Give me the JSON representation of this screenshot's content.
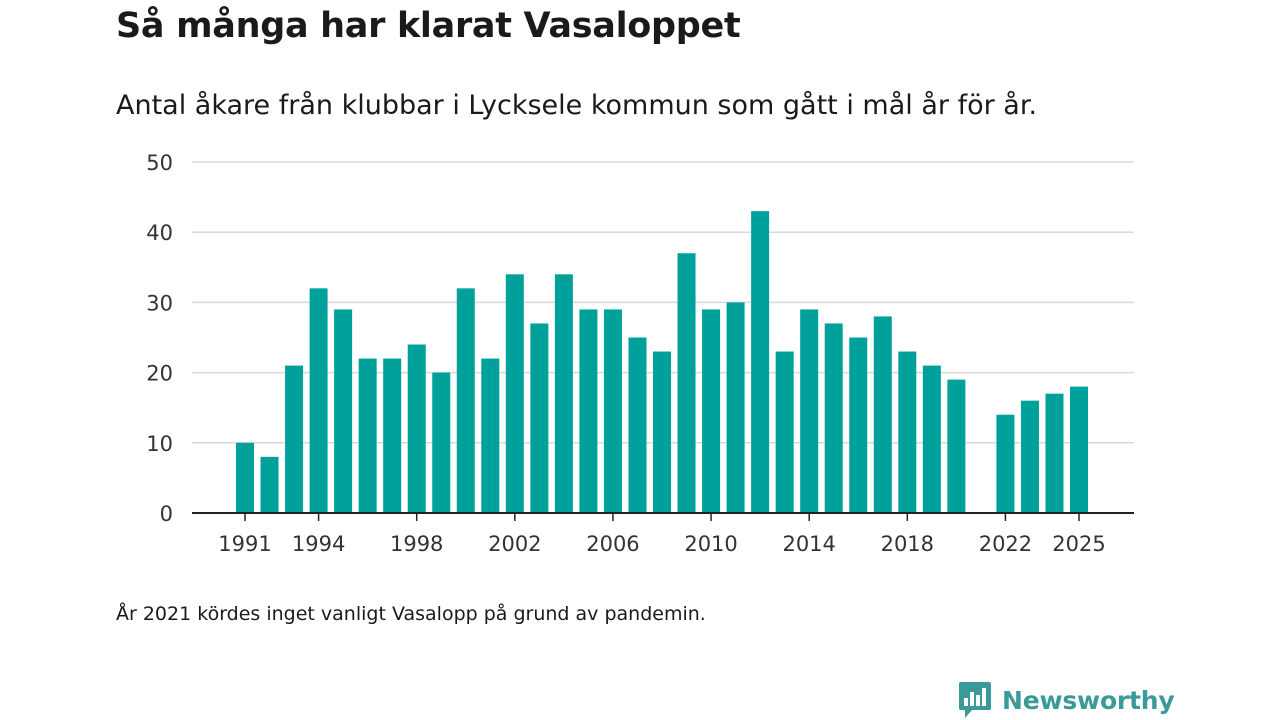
{
  "colors": {
    "bar": "#00a19a",
    "grid": "#d9d9d9",
    "axis": "#222222",
    "brand": "#3a9a9a"
  },
  "chart_data": {
    "type": "bar",
    "title": "Så många har klarat Vasaloppet",
    "subtitle": "Antal åkare från klubbar i Lycksele kommun som gått i mål år för år.",
    "xlabel": "",
    "ylabel": "",
    "ylim": [
      0,
      50
    ],
    "yticks": [
      0,
      10,
      20,
      30,
      40,
      50
    ],
    "xticks": [
      1991,
      1994,
      1998,
      2002,
      2006,
      2010,
      2014,
      2018,
      2022,
      2025
    ],
    "grid": true,
    "categories": [
      1991,
      1992,
      1993,
      1994,
      1995,
      1996,
      1997,
      1998,
      1999,
      2000,
      2001,
      2002,
      2003,
      2004,
      2005,
      2006,
      2007,
      2008,
      2009,
      2010,
      2011,
      2012,
      2013,
      2014,
      2015,
      2016,
      2017,
      2018,
      2019,
      2020,
      2022,
      2023,
      2024,
      2025
    ],
    "values": [
      10,
      8,
      21,
      32,
      29,
      22,
      22,
      24,
      20,
      32,
      22,
      34,
      27,
      34,
      29,
      29,
      25,
      23,
      37,
      29,
      30,
      43,
      23,
      29,
      27,
      25,
      28,
      23,
      21,
      19,
      14,
      16,
      17,
      18
    ],
    "note": "År 2021 kördes inget vanligt Vasalopp på grund av pandemin."
  },
  "brand": {
    "name": "Newsworthy",
    "icon": "newsworthy-logo-icon"
  }
}
